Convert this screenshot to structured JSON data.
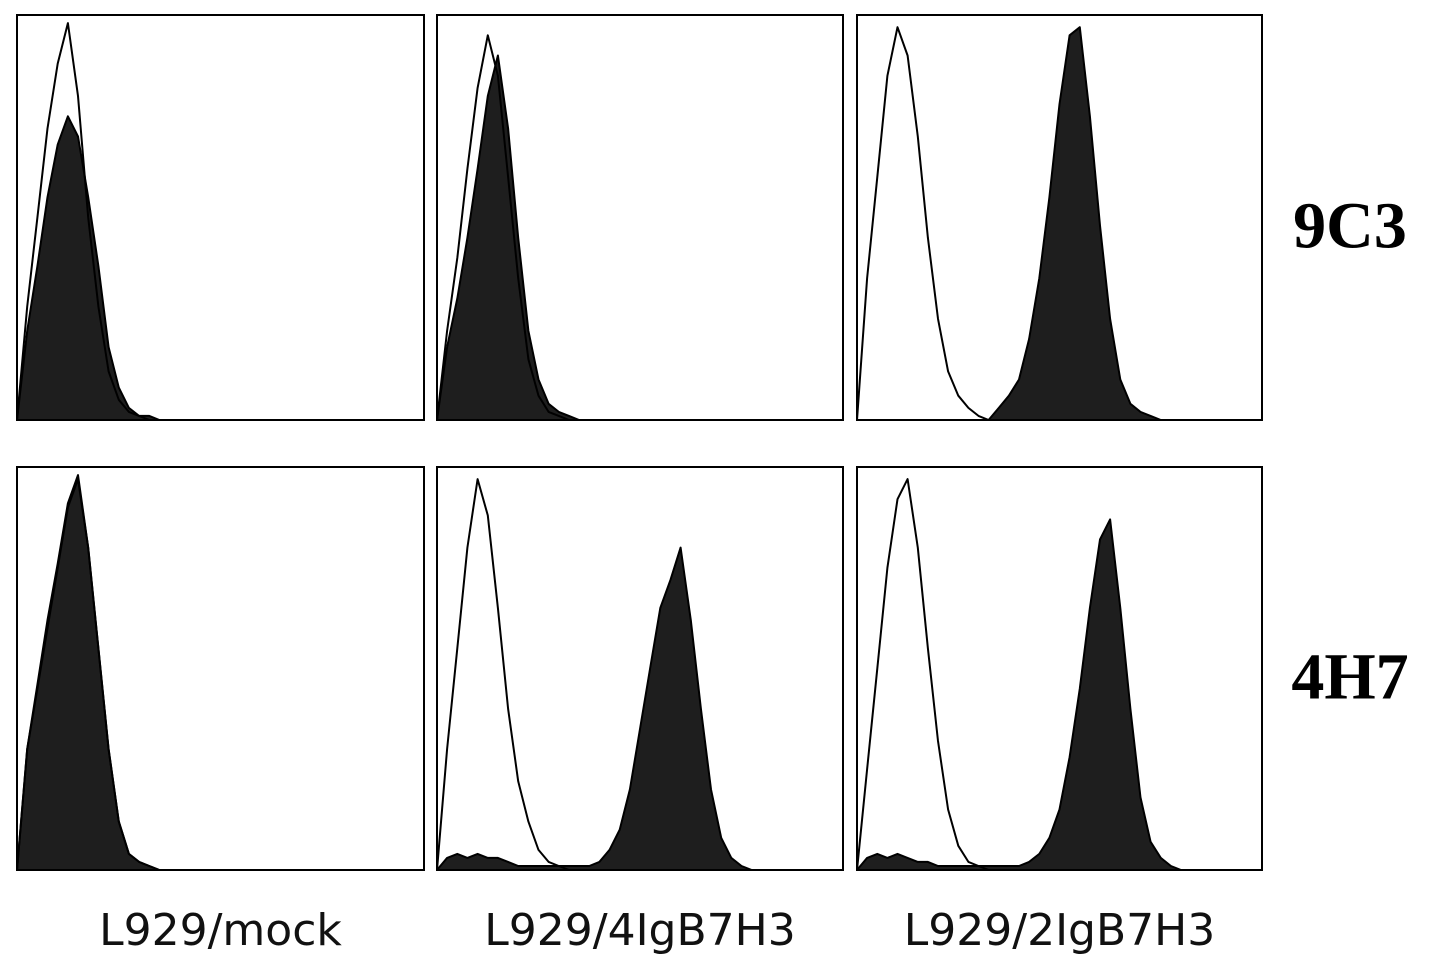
{
  "row_labels": [
    "9C3",
    "4H7"
  ],
  "column_labels": [
    "L929/mock",
    "L929/4IgB7H3",
    "L929/2IgB7H3"
  ],
  "chart_data": [
    {
      "type": "area",
      "xlim": [
        0,
        100
      ],
      "ylim": [
        0,
        100
      ],
      "x": [
        0,
        2.5,
        5,
        7.5,
        10,
        12.5,
        15,
        17.5,
        20,
        22.5,
        25,
        27.5,
        30,
        32.5,
        35,
        37.5,
        40,
        42.5,
        45,
        47.5,
        50,
        52.5,
        55,
        57.5,
        60,
        62.5,
        65,
        67.5,
        70,
        72.5,
        75,
        77.5,
        80,
        82.5,
        85,
        87.5,
        90,
        92.5,
        95,
        97.5,
        100
      ],
      "series": [
        {
          "color": "#000000",
          "fill": "#1e1e1e",
          "values": [
            0,
            22,
            38,
            55,
            68,
            75,
            70,
            55,
            38,
            18,
            8,
            3,
            1,
            1,
            0,
            0,
            0,
            0,
            0,
            0,
            0,
            0,
            0,
            0,
            0,
            0,
            0,
            0,
            0,
            0,
            0,
            0,
            0,
            0,
            0,
            0,
            0,
            0,
            0,
            0,
            0
          ]
        },
        {
          "color": "#000000",
          "fill": "none",
          "values": [
            0,
            28,
            50,
            72,
            88,
            98,
            80,
            50,
            28,
            12,
            5,
            2,
            1,
            0,
            0,
            0,
            0,
            0,
            0,
            0,
            0,
            0,
            0,
            0,
            0,
            0,
            0,
            0,
            0,
            0,
            0,
            0,
            0,
            0,
            0,
            0,
            0,
            0,
            0,
            0,
            0
          ]
        }
      ]
    },
    {
      "type": "area",
      "xlim": [
        0,
        100
      ],
      "ylim": [
        0,
        100
      ],
      "x": [
        0,
        2.5,
        5,
        7.5,
        10,
        12.5,
        15,
        17.5,
        20,
        22.5,
        25,
        27.5,
        30,
        32.5,
        35,
        37.5,
        40,
        42.5,
        45,
        47.5,
        50,
        52.5,
        55,
        57.5,
        60,
        62.5,
        65,
        67.5,
        70,
        72.5,
        75,
        77.5,
        80,
        82.5,
        85,
        87.5,
        90,
        92.5,
        95,
        97.5,
        100
      ],
      "series": [
        {
          "color": "#000000",
          "fill": "#1e1e1e",
          "values": [
            0,
            18,
            30,
            45,
            62,
            80,
            90,
            72,
            45,
            22,
            10,
            4,
            2,
            1,
            0,
            0,
            0,
            0,
            0,
            0,
            0,
            0,
            0,
            0,
            0,
            0,
            0,
            0,
            0,
            0,
            0,
            0,
            0,
            0,
            0,
            0,
            0,
            0,
            0,
            0,
            0
          ]
        },
        {
          "color": "#000000",
          "fill": "none",
          "values": [
            0,
            22,
            40,
            62,
            82,
            95,
            85,
            60,
            35,
            15,
            6,
            2,
            1,
            0,
            0,
            0,
            0,
            0,
            0,
            0,
            0,
            0,
            0,
            0,
            0,
            0,
            0,
            0,
            0,
            0,
            0,
            0,
            0,
            0,
            0,
            0,
            0,
            0,
            0,
            0,
            0
          ]
        }
      ]
    },
    {
      "type": "area",
      "xlim": [
        0,
        100
      ],
      "ylim": [
        0,
        100
      ],
      "x": [
        0,
        2.5,
        5,
        7.5,
        10,
        12.5,
        15,
        17.5,
        20,
        22.5,
        25,
        27.5,
        30,
        32.5,
        35,
        37.5,
        40,
        42.5,
        45,
        47.5,
        50,
        52.5,
        55,
        57.5,
        60,
        62.5,
        65,
        67.5,
        70,
        72.5,
        75,
        77.5,
        80,
        82.5,
        85,
        87.5,
        90,
        92.5,
        95,
        97.5,
        100
      ],
      "series": [
        {
          "color": "#000000",
          "fill": "#1e1e1e",
          "values": [
            0,
            0,
            0,
            0,
            0,
            0,
            0,
            0,
            0,
            0,
            0,
            0,
            0,
            0,
            3,
            6,
            10,
            20,
            35,
            55,
            78,
            95,
            97,
            75,
            48,
            25,
            10,
            4,
            2,
            1,
            0,
            0,
            0,
            0,
            0,
            0,
            0,
            0,
            0,
            0,
            0
          ]
        },
        {
          "color": "#000000",
          "fill": "none",
          "values": [
            0,
            35,
            60,
            85,
            97,
            90,
            70,
            45,
            25,
            12,
            6,
            3,
            1,
            0,
            0,
            0,
            0,
            0,
            0,
            0,
            0,
            0,
            0,
            0,
            0,
            0,
            0,
            0,
            0,
            0,
            0,
            0,
            0,
            0,
            0,
            0,
            0,
            0,
            0,
            0,
            0
          ]
        }
      ]
    },
    {
      "type": "area",
      "xlim": [
        0,
        100
      ],
      "ylim": [
        0,
        100
      ],
      "x": [
        0,
        2.5,
        5,
        7.5,
        10,
        12.5,
        15,
        17.5,
        20,
        22.5,
        25,
        27.5,
        30,
        32.5,
        35,
        37.5,
        40,
        42.5,
        45,
        47.5,
        50,
        52.5,
        55,
        57.5,
        60,
        62.5,
        65,
        67.5,
        70,
        72.5,
        75,
        77.5,
        80,
        82.5,
        85,
        87.5,
        90,
        92.5,
        95,
        97.5,
        100
      ],
      "series": [
        {
          "color": "#000000",
          "fill": "#1e1e1e",
          "values": [
            0,
            30,
            45,
            60,
            75,
            90,
            97,
            80,
            55,
            30,
            12,
            4,
            2,
            1,
            0,
            0,
            0,
            0,
            0,
            0,
            0,
            0,
            0,
            0,
            0,
            0,
            0,
            0,
            0,
            0,
            0,
            0,
            0,
            0,
            0,
            0,
            0,
            0,
            0,
            0,
            0
          ]
        },
        {
          "color": "#000000",
          "fill": "none",
          "values": [
            0,
            30,
            46,
            62,
            76,
            91,
            98,
            80,
            55,
            30,
            12,
            4,
            2,
            1,
            0,
            0,
            0,
            0,
            0,
            0,
            0,
            0,
            0,
            0,
            0,
            0,
            0,
            0,
            0,
            0,
            0,
            0,
            0,
            0,
            0,
            0,
            0,
            0,
            0,
            0,
            0
          ]
        }
      ]
    },
    {
      "type": "area",
      "xlim": [
        0,
        100
      ],
      "ylim": [
        0,
        100
      ],
      "x": [
        0,
        2.5,
        5,
        7.5,
        10,
        12.5,
        15,
        17.5,
        20,
        22.5,
        25,
        27.5,
        30,
        32.5,
        35,
        37.5,
        40,
        42.5,
        45,
        47.5,
        50,
        52.5,
        55,
        57.5,
        60,
        62.5,
        65,
        67.5,
        70,
        72.5,
        75,
        77.5,
        80,
        82.5,
        85,
        87.5,
        90,
        92.5,
        95,
        97.5,
        100
      ],
      "series": [
        {
          "color": "#000000",
          "fill": "#1e1e1e",
          "values": [
            0,
            3,
            4,
            3,
            4,
            3,
            3,
            2,
            1,
            1,
            1,
            1,
            1,
            1,
            1,
            1,
            2,
            5,
            10,
            20,
            35,
            50,
            65,
            72,
            80,
            62,
            40,
            20,
            8,
            3,
            1,
            0,
            0,
            0,
            0,
            0,
            0,
            0,
            0,
            0,
            0
          ]
        },
        {
          "color": "#000000",
          "fill": "none",
          "values": [
            0,
            30,
            55,
            80,
            97,
            88,
            65,
            40,
            22,
            12,
            5,
            2,
            1,
            0,
            0,
            0,
            0,
            0,
            0,
            0,
            0,
            0,
            0,
            0,
            0,
            0,
            0,
            0,
            0,
            0,
            0,
            0,
            0,
            0,
            0,
            0,
            0,
            0,
            0,
            0,
            0
          ]
        }
      ]
    },
    {
      "type": "area",
      "xlim": [
        0,
        100
      ],
      "ylim": [
        0,
        100
      ],
      "x": [
        0,
        2.5,
        5,
        7.5,
        10,
        12.5,
        15,
        17.5,
        20,
        22.5,
        25,
        27.5,
        30,
        32.5,
        35,
        37.5,
        40,
        42.5,
        45,
        47.5,
        50,
        52.5,
        55,
        57.5,
        60,
        62.5,
        65,
        67.5,
        70,
        72.5,
        75,
        77.5,
        80,
        82.5,
        85,
        87.5,
        90,
        92.5,
        95,
        97.5,
        100
      ],
      "series": [
        {
          "color": "#000000",
          "fill": "#1e1e1e",
          "values": [
            0,
            3,
            4,
            3,
            4,
            3,
            2,
            2,
            1,
            1,
            1,
            1,
            1,
            1,
            1,
            1,
            1,
            2,
            4,
            8,
            15,
            28,
            45,
            65,
            82,
            87,
            65,
            40,
            18,
            7,
            3,
            1,
            0,
            0,
            0,
            0,
            0,
            0,
            0,
            0,
            0
          ]
        },
        {
          "color": "#000000",
          "fill": "none",
          "values": [
            0,
            25,
            50,
            75,
            92,
            97,
            80,
            55,
            32,
            15,
            6,
            2,
            1,
            0,
            0,
            0,
            0,
            0,
            0,
            0,
            0,
            0,
            0,
            0,
            0,
            0,
            0,
            0,
            0,
            0,
            0,
            0,
            0,
            0,
            0,
            0,
            0,
            0,
            0,
            0,
            0
          ]
        }
      ]
    }
  ]
}
